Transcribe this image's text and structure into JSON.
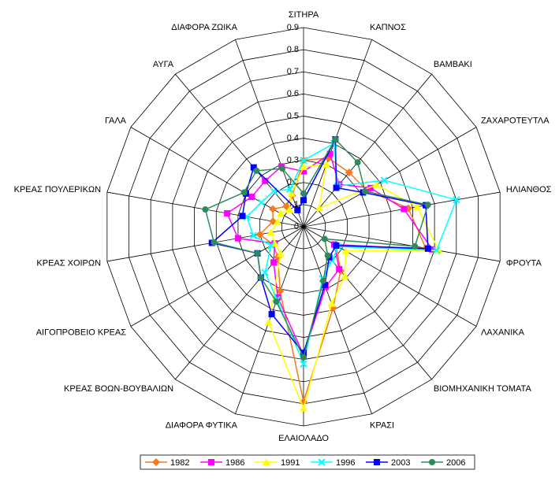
{
  "chart_data": {
    "type": "radar",
    "categories": [
      "ΣΙΤΗΡΑ",
      "ΚΑΠΝΟΣ",
      "ΒΑΜΒΑΚΙ",
      "ΖΑΧΑΡΟΤΕΥΤΛΑ",
      "ΗΛΙΑΝΘΟΣ",
      "ΦΡΟΥΤΑ",
      "ΛΑΧΑΝΙΚΑ",
      "ΒΙΟΜΗΧΑΝΙΚΗ ΤΟΜΑΤΑ",
      "ΚΡΑΣΙ",
      "ΕΛΑΙΟΛΑΔΟ",
      "ΔΙΑΦΟΡΑ ΦΥΤΙΚΑ",
      "ΚΡΕΑΣ ΒΟΩΝ-ΒΟΥΒΑΛΙΩΝ",
      "ΑΙΓΟΠΡΟΒΕΙΟ ΚΡΕΑΣ",
      "ΚΡΕΑΣ ΧΟΙΡΩΝ",
      "ΚΡΕΑΣ ΠΟΥΛΕΡΙΚΩΝ",
      "ΓΑΛΑ",
      "ΑΥΓΑ",
      "ΔΙΑΦΟΡΑ ΖΩΙΚΑ"
    ],
    "series": [
      {
        "name": "1982",
        "color": "#f47a1f",
        "marker": "diamond",
        "values": [
          0.3,
          0.33,
          0.32,
          0.33,
          0.48,
          0.56,
          0.17,
          0.26,
          0.39,
          0.79,
          0.31,
          0.18,
          0.16,
          0.2,
          0.14,
          0.16,
          0.12,
          0.15
        ]
      },
      {
        "name": "1986",
        "color": "#ff00ff",
        "marker": "square",
        "values": [
          0.25,
          0.35,
          0.25,
          0.35,
          0.46,
          0.59,
          0.16,
          0.25,
          0.29,
          0.58,
          0.34,
          0.21,
          0.15,
          0.3,
          0.35,
          0.27,
          0.27,
          0.29
        ]
      },
      {
        "name": "1991",
        "color": "#ffff00",
        "marker": "triangle",
        "values": [
          0.27,
          0.3,
          0.11,
          0.38,
          0.52,
          0.62,
          0.22,
          0.29,
          0.37,
          0.82,
          0.46,
          0.16,
          0.15,
          0.15,
          0.12,
          0.12,
          0.1,
          0.16
        ]
      },
      {
        "name": "1996",
        "color": "#00ffff",
        "marker": "cross",
        "values": [
          0.3,
          0.4,
          0.24,
          0.42,
          0.7,
          0.61,
          0.18,
          0.2,
          0.25,
          0.62,
          0.35,
          0.27,
          0.17,
          0.23,
          0.26,
          0.22,
          0.21,
          0.18
        ]
      },
      {
        "name": "2003",
        "color": "#0000ff",
        "marker": "square",
        "values": [
          0.12,
          0.42,
          0.23,
          0.31,
          0.56,
          0.57,
          0.17,
          0.18,
          0.28,
          0.57,
          0.42,
          0.3,
          0.24,
          0.42,
          0.28,
          0.3,
          0.35,
          0.08
        ]
      },
      {
        "name": "2006",
        "color": "#2e8b57",
        "marker": "circle",
        "values": [
          0.15,
          0.42,
          0.38,
          0.32,
          0.57,
          0.51,
          0.11,
          0.17,
          0.26,
          0.59,
          0.36,
          0.3,
          0.24,
          0.41,
          0.45,
          0.31,
          0.33,
          0.28
        ]
      }
    ],
    "rlim": [
      0,
      0.9
    ],
    "rticks": [
      0,
      0.1,
      0.2,
      0.3,
      0.4,
      0.5,
      0.6,
      0.7,
      0.8,
      0.9
    ],
    "legend": "bottom"
  }
}
